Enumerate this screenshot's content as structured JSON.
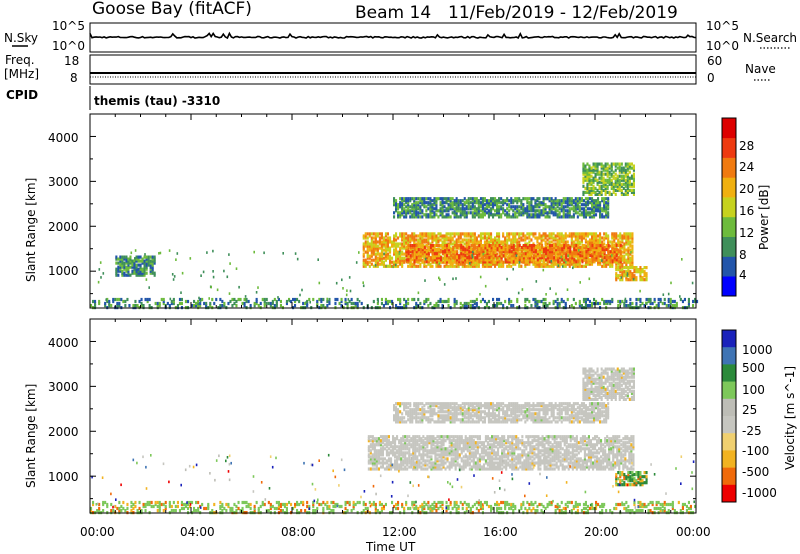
{
  "header": {
    "station": "Goose Bay (fitACF)",
    "beam": "Beam 14",
    "date_range": "11/Feb/2019 - 12/Feb/2019"
  },
  "strip_panels": {
    "nsky_label": "N.Sky",
    "nsearch_label": "N.Search",
    "noise_ticks_left": [
      "10^5",
      "10^0"
    ],
    "noise_ticks_right": [
      "10^5",
      "10^0"
    ],
    "freq_label_1": "Freq.",
    "freq_label_2": "[MHz]",
    "freq_ticks": [
      "18",
      "8"
    ],
    "nave_label": "Nave",
    "nave_ticks": [
      "60",
      "0"
    ],
    "cpid_label": "CPID",
    "cpid_text": "themis (tau) -3310"
  },
  "colors": {
    "power_scale": [
      "#0000ff",
      "#2255aa",
      "#3f8f5a",
      "#6dbb3c",
      "#c6d21e",
      "#f0b010",
      "#f07a10",
      "#ee3a10",
      "#dd0000"
    ],
    "velocity_scale": [
      "#ee0000",
      "#f06a0a",
      "#f2b321",
      "#f0d070",
      "#c6c6c0",
      "#bdbdb6",
      "#7dc85a",
      "#2b8a3a",
      "#3f74b4",
      "#1a22bb"
    ]
  },
  "chart_data": [
    {
      "type": "heatmap",
      "quantity": "Power",
      "xlabel": "",
      "ylabel": "Slant Range [km]",
      "ylim": [
        180,
        4500
      ],
      "yticks": [
        "1000",
        "2000",
        "3000",
        "4000"
      ],
      "xticks": [],
      "colorbar_label": "Power [dB]",
      "colorbar_ticks": [
        "4",
        "8",
        "12",
        "16",
        "20",
        "24",
        "28"
      ],
      "colorbar_range": [
        0,
        32
      ],
      "regions": [
        {
          "t_start": 1.0,
          "t_end": 2.6,
          "r_min": 900,
          "r_max": 1350,
          "level": 8
        },
        {
          "t_start": 10.8,
          "t_end": 21.5,
          "r_min": 1100,
          "r_max": 1850,
          "level": 20
        },
        {
          "t_start": 12.5,
          "t_end": 21.0,
          "r_min": 1200,
          "r_max": 1600,
          "level": 24
        },
        {
          "t_start": 12.0,
          "t_end": 20.5,
          "r_min": 2200,
          "r_max": 2650,
          "level": 8
        },
        {
          "t_start": 19.5,
          "t_end": 21.5,
          "r_min": 2700,
          "r_max": 3400,
          "level": 12
        },
        {
          "t_start": 20.8,
          "t_end": 22.0,
          "r_min": 800,
          "r_max": 1100,
          "level": 20
        },
        {
          "t_start": 0.0,
          "t_end": 24.0,
          "r_min": 180,
          "r_max": 400,
          "level": 8
        }
      ]
    },
    {
      "type": "heatmap",
      "quantity": "Velocity",
      "xlabel": "Time UT",
      "ylabel": "Slant Range [km]",
      "ylim": [
        180,
        4500
      ],
      "yticks": [
        "1000",
        "2000",
        "3000",
        "4000"
      ],
      "xticks": [
        "00:00",
        "04:00",
        "08:00",
        "12:00",
        "16:00",
        "20:00",
        "00:00"
      ],
      "xlim_hours": [
        0,
        24
      ],
      "colorbar_label": "Velocity [m s^-1]",
      "colorbar_ticks": [
        "1000",
        "500",
        "100",
        "25",
        "-25",
        "-100",
        "-500",
        "-1000"
      ],
      "regions": [
        {
          "t_start": 11.0,
          "t_end": 21.5,
          "r_min": 1150,
          "r_max": 1900,
          "level": "ground_scatter"
        },
        {
          "t_start": 12.0,
          "t_end": 20.5,
          "r_min": 2200,
          "r_max": 2650,
          "level": "ground_scatter"
        },
        {
          "t_start": 19.5,
          "t_end": 21.5,
          "r_min": 2700,
          "r_max": 3400,
          "level": "ground_scatter"
        },
        {
          "t_start": 20.8,
          "t_end": 22.0,
          "r_min": 800,
          "r_max": 1100,
          "level": 100
        },
        {
          "t_start": 0.0,
          "t_end": 24.0,
          "r_min": 180,
          "r_max": 450,
          "level": 25
        }
      ]
    }
  ]
}
